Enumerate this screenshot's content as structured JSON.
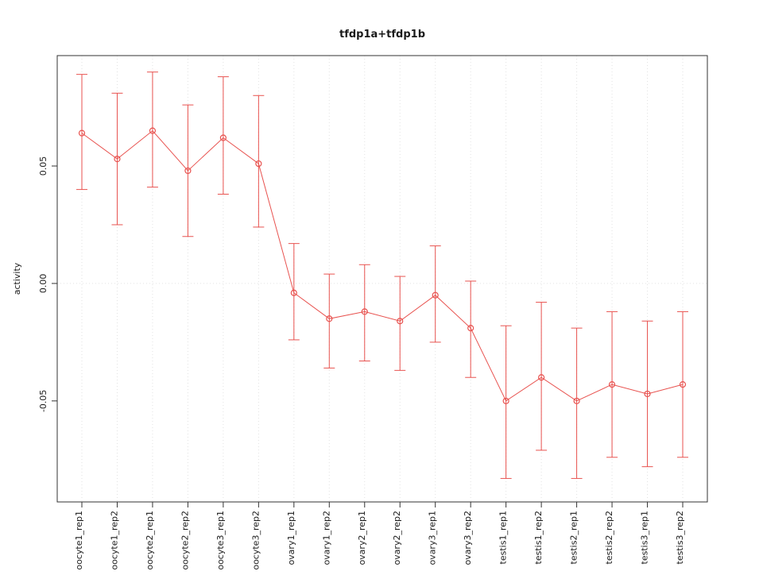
{
  "chart_data": {
    "type": "line",
    "title": "tfdp1a+tfdp1b",
    "ylabel": "activity",
    "xlabel": "",
    "categories": [
      "oocyte1_rep1",
      "oocyte1_rep2",
      "oocyte2_rep1",
      "oocyte2_rep2",
      "oocyte3_rep1",
      "oocyte3_rep2",
      "ovary1_rep1",
      "ovary1_rep2",
      "ovary2_rep1",
      "ovary2_rep2",
      "ovary3_rep1",
      "ovary3_rep2",
      "testis1_rep1",
      "testis1_rep2",
      "testis2_rep1",
      "testis2_rep2",
      "testis3_rep1",
      "testis3_rep2"
    ],
    "series": [
      {
        "name": "activity",
        "values": [
          0.064,
          0.053,
          0.065,
          0.048,
          0.062,
          0.051,
          -0.004,
          -0.015,
          -0.012,
          -0.016,
          -0.005,
          -0.019,
          -0.05,
          -0.04,
          -0.05,
          -0.043,
          -0.047,
          -0.043
        ],
        "error_low": [
          0.04,
          0.025,
          0.041,
          0.02,
          0.038,
          0.024,
          -0.024,
          -0.036,
          -0.033,
          -0.037,
          -0.025,
          -0.04,
          -0.083,
          -0.071,
          -0.083,
          -0.074,
          -0.078,
          -0.074
        ],
        "error_high": [
          0.089,
          0.081,
          0.09,
          0.076,
          0.088,
          0.08,
          0.017,
          0.004,
          0.008,
          0.003,
          0.016,
          0.001,
          -0.018,
          -0.008,
          -0.019,
          -0.012,
          -0.016,
          -0.012
        ]
      }
    ],
    "yticks": [
      -0.05,
      0,
      0.05
    ],
    "ytick_labels": [
      "-0.05",
      "0.00",
      "0.05"
    ],
    "ylim": [
      -0.093,
      0.097
    ],
    "grid": true,
    "legend_position": "none",
    "colors": {
      "series": "#e8524f",
      "grid": "#e2e2e2",
      "box": "#333333",
      "tick_text": "#1a1a1a"
    }
  }
}
